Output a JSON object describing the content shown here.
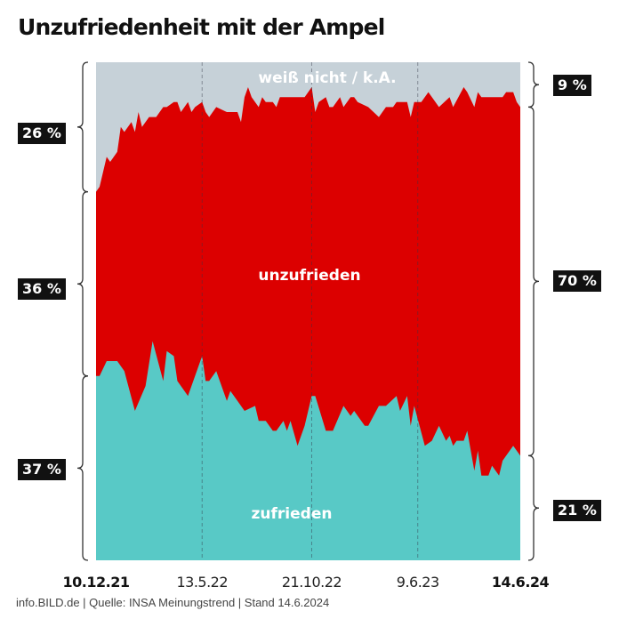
{
  "title": "Unzufriedenheit mit der Ampel",
  "footer": "info.BILD.de | Quelle: INSA Meinungstrend | Stand 14.6.2024",
  "chart_data": {
    "type": "area",
    "stacked": true,
    "normalized": true,
    "ylim": [
      0,
      100
    ],
    "grid": "vertical dashed at labelled dates",
    "x_axis": {
      "unit": "poll",
      "range": [
        0,
        120
      ],
      "ticks": [
        {
          "index": 0,
          "label": "10.12.21",
          "bold": true
        },
        {
          "index": 30,
          "label": "13.5.22",
          "bold": false
        },
        {
          "index": 61,
          "label": "21.10.22",
          "bold": false
        },
        {
          "index": 91,
          "label": "9.6.23",
          "bold": false
        },
        {
          "index": 120,
          "label": "14.6.24",
          "bold": true
        }
      ]
    },
    "colors": {
      "weiss_nicht": "#c6d1d8",
      "unzufrieden": "#dc0000",
      "zufrieden": "#58c9c6"
    },
    "series": [
      {
        "name": "zufrieden",
        "points": [
          [
            0,
            37
          ],
          [
            1,
            37
          ],
          [
            3,
            40
          ],
          [
            6,
            40
          ],
          [
            8,
            38
          ],
          [
            11,
            30
          ],
          [
            14,
            35
          ],
          [
            16,
            44
          ],
          [
            19,
            36
          ],
          [
            20,
            42
          ],
          [
            22,
            41
          ],
          [
            23,
            36
          ],
          [
            26,
            33
          ],
          [
            27,
            35
          ],
          [
            30,
            41
          ],
          [
            31,
            36
          ],
          [
            32,
            36
          ],
          [
            34,
            38
          ],
          [
            37,
            32
          ],
          [
            38,
            34
          ],
          [
            40,
            32
          ],
          [
            42,
            30
          ],
          [
            45,
            31
          ],
          [
            46,
            28
          ],
          [
            48,
            28
          ],
          [
            50,
            26
          ],
          [
            51,
            26
          ],
          [
            53,
            28
          ],
          [
            54,
            26
          ],
          [
            55,
            28
          ],
          [
            57,
            23
          ],
          [
            59,
            27
          ],
          [
            61,
            33
          ],
          [
            62,
            33
          ],
          [
            65,
            26
          ],
          [
            67,
            26
          ],
          [
            70,
            31
          ],
          [
            72,
            29
          ],
          [
            73,
            30
          ],
          [
            76,
            27
          ],
          [
            77,
            27
          ],
          [
            80,
            31
          ],
          [
            82,
            31
          ],
          [
            85,
            33
          ],
          [
            86,
            30
          ],
          [
            88,
            33
          ],
          [
            89,
            27
          ],
          [
            90,
            31
          ],
          [
            93,
            23
          ],
          [
            95,
            24
          ],
          [
            97,
            27
          ],
          [
            99,
            24
          ],
          [
            100,
            25
          ],
          [
            101,
            23
          ],
          [
            102,
            24
          ],
          [
            104,
            24
          ],
          [
            105,
            26
          ],
          [
            107,
            18
          ],
          [
            108,
            22
          ],
          [
            109,
            17
          ],
          [
            111,
            17
          ],
          [
            112,
            19
          ],
          [
            114,
            17
          ],
          [
            115,
            20
          ],
          [
            116,
            21
          ],
          [
            118,
            23
          ],
          [
            120,
            21
          ]
        ]
      },
      {
        "name": "unzufrieden",
        "points": "remainder (100 - zufrieden - weiß nicht / k.A.)"
      },
      {
        "name": "weiß nicht / k.A.",
        "points": [
          [
            0,
            26
          ],
          [
            1,
            25
          ],
          [
            3,
            19
          ],
          [
            4,
            20
          ],
          [
            6,
            18
          ],
          [
            7,
            13
          ],
          [
            8,
            14
          ],
          [
            10,
            12
          ],
          [
            11,
            14
          ],
          [
            12,
            10
          ],
          [
            13,
            13
          ],
          [
            15,
            11
          ],
          [
            17,
            11
          ],
          [
            19,
            9
          ],
          [
            20,
            9
          ],
          [
            22,
            8
          ],
          [
            23,
            8
          ],
          [
            24,
            10
          ],
          [
            26,
            8
          ],
          [
            27,
            10
          ],
          [
            28,
            9
          ],
          [
            30,
            8
          ],
          [
            31,
            10
          ],
          [
            32,
            11
          ],
          [
            34,
            9
          ],
          [
            37,
            10
          ],
          [
            40,
            10
          ],
          [
            41,
            12
          ],
          [
            42,
            7
          ],
          [
            43,
            5
          ],
          [
            44,
            7
          ],
          [
            46,
            9
          ],
          [
            47,
            7
          ],
          [
            48,
            8
          ],
          [
            50,
            8
          ],
          [
            51,
            9
          ],
          [
            52,
            7
          ],
          [
            55,
            7
          ],
          [
            57,
            7
          ],
          [
            58,
            7
          ],
          [
            59,
            7
          ],
          [
            61,
            5
          ],
          [
            62,
            10
          ],
          [
            63,
            8
          ],
          [
            65,
            7
          ],
          [
            66,
            9
          ],
          [
            67,
            9
          ],
          [
            69,
            7
          ],
          [
            70,
            9
          ],
          [
            72,
            7
          ],
          [
            73,
            7
          ],
          [
            74,
            8
          ],
          [
            77,
            9
          ],
          [
            80,
            11
          ],
          [
            82,
            9
          ],
          [
            84,
            9
          ],
          [
            85,
            8
          ],
          [
            88,
            8
          ],
          [
            89,
            11
          ],
          [
            90,
            8
          ],
          [
            92,
            8
          ],
          [
            94,
            6
          ],
          [
            96,
            8
          ],
          [
            97,
            9
          ],
          [
            100,
            7
          ],
          [
            101,
            9
          ],
          [
            104,
            5
          ],
          [
            105,
            6
          ],
          [
            107,
            9
          ],
          [
            108,
            6
          ],
          [
            109,
            7
          ],
          [
            115,
            7
          ],
          [
            116,
            6
          ],
          [
            118,
            6
          ],
          [
            119,
            8
          ],
          [
            120,
            9
          ]
        ]
      }
    ],
    "area_labels": {
      "weiss_nicht": "weiß nicht / k.A.",
      "unzufrieden": "unzufrieden",
      "zufrieden": "zufrieden"
    },
    "start_values": {
      "weiss_nicht": "26 %",
      "unzufrieden": "36 %",
      "zufrieden": "37 %",
      "weiss_nicht_value": 26,
      "unzufrieden_value": 36,
      "zufrieden_value": 37
    },
    "end_values": {
      "weiss_nicht": "9 %",
      "unzufrieden": "70 %",
      "zufrieden": "21 %",
      "weiss_nicht_value": 9,
      "unzufrieden_value": 70,
      "zufrieden_value": 21
    }
  }
}
